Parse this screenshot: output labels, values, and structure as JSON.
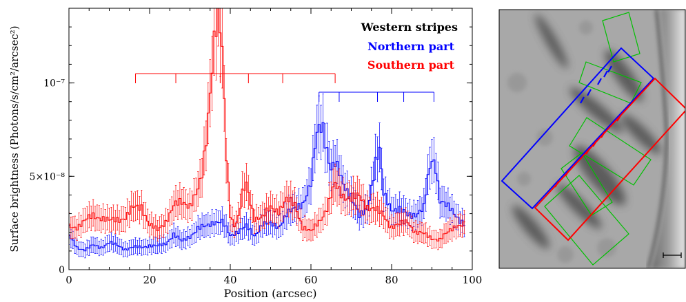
{
  "chart_data": [
    {
      "type": "line",
      "xlabel": "Position (arcsec)",
      "ylabel": "Surface brightness (Photons/s/cm²/arcsec²)",
      "xlim": [
        0,
        100
      ],
      "ylim": [
        0,
        1.4e-07
      ],
      "x_ticks": [
        0,
        20,
        40,
        60,
        80,
        100
      ],
      "x_tick_labels": [
        "0",
        "20",
        "40",
        "60",
        "80",
        "100"
      ],
      "y_ticks": [
        0,
        5e-08,
        1e-07
      ],
      "y_tick_labels": [
        "0",
        "5×10⁻⁸",
        "10⁻⁷"
      ],
      "legend": {
        "position": "top-right",
        "title": "Western stripes",
        "title_color": "#000000"
      },
      "grid": false,
      "series": [
        {
          "name": "Northern part",
          "color": "#0000ff",
          "points": [
            [
              0,
              1.8e-08
            ],
            [
              2,
              1.2e-08
            ],
            [
              4,
              1.05e-08
            ],
            [
              6,
              1.3e-08
            ],
            [
              8,
              1.2e-08
            ],
            [
              10,
              1.45e-08
            ],
            [
              12,
              1.3e-08
            ],
            [
              14,
              1.1e-08
            ],
            [
              16,
              1.2e-08
            ],
            [
              18,
              1.2e-08
            ],
            [
              20,
              1.3e-08
            ],
            [
              22,
              1.25e-08
            ],
            [
              24,
              1.4e-08
            ],
            [
              26,
              1.9e-08
            ],
            [
              28,
              1.5e-08
            ],
            [
              30,
              1.8e-08
            ],
            [
              32,
              2.2e-08
            ],
            [
              34,
              2.3e-08
            ],
            [
              36,
              2.6e-08
            ],
            [
              38,
              2.55e-08
            ],
            [
              40,
              1.8e-08
            ],
            [
              42,
              2.1e-08
            ],
            [
              44,
              2.3e-08
            ],
            [
              46,
              1.8e-08
            ],
            [
              48,
              2.5e-08
            ],
            [
              50,
              2.4e-08
            ],
            [
              52,
              2.3e-08
            ],
            [
              54,
              3e-08
            ],
            [
              56,
              3.2e-08
            ],
            [
              58,
              3.6e-08
            ],
            [
              60,
              4.6e-08
            ],
            [
              61,
              6.5e-08
            ],
            [
              62,
              7.6e-08
            ],
            [
              63,
              7.7e-08
            ],
            [
              64,
              6.5e-08
            ],
            [
              65,
              5.4e-08
            ],
            [
              66,
              5.6e-08
            ],
            [
              68,
              4.6e-08
            ],
            [
              70,
              4e-08
            ],
            [
              72,
              2.8e-08
            ],
            [
              74,
              3.3e-08
            ],
            [
              75,
              4.5e-08
            ],
            [
              76,
              5.8e-08
            ],
            [
              77,
              6.3e-08
            ],
            [
              78,
              4e-08
            ],
            [
              80,
              3.3e-08
            ],
            [
              82,
              3.2e-08
            ],
            [
              84,
              2.9e-08
            ],
            [
              86,
              3e-08
            ],
            [
              88,
              3.3e-08
            ],
            [
              89,
              4.8e-08
            ],
            [
              90,
              5.9e-08
            ],
            [
              91,
              5.6e-08
            ],
            [
              92,
              3.8e-08
            ],
            [
              94,
              3.3e-08
            ],
            [
              96,
              2.9e-08
            ],
            [
              98,
              2.5e-08
            ]
          ],
          "ticks_x": [
            62,
            67,
            76.5,
            83,
            90.5
          ]
        },
        {
          "name": "Southern part",
          "color": "#ff0000",
          "points": [
            [
              0,
              2.3e-08
            ],
            [
              2,
              2.3e-08
            ],
            [
              4,
              2.6e-08
            ],
            [
              6,
              2.9e-08
            ],
            [
              8,
              2.8e-08
            ],
            [
              10,
              2.6e-08
            ],
            [
              12,
              2.7e-08
            ],
            [
              14,
              2.8e-08
            ],
            [
              16,
              3.3e-08
            ],
            [
              18,
              3.4e-08
            ],
            [
              20,
              2.4e-08
            ],
            [
              22,
              2.1e-08
            ],
            [
              24,
              2.6e-08
            ],
            [
              26,
              3.4e-08
            ],
            [
              28,
              3.6e-08
            ],
            [
              30,
              3.5e-08
            ],
            [
              32,
              4.2e-08
            ],
            [
              33,
              5e-08
            ],
            [
              34,
              7e-08
            ],
            [
              35,
              9.8e-08
            ],
            [
              36,
              1.25e-07
            ],
            [
              37,
              1.38e-07
            ],
            [
              38,
              1.15e-07
            ],
            [
              39,
              6e-08
            ],
            [
              40,
              3e-08
            ],
            [
              41,
              2.4e-08
            ],
            [
              42,
              2.8e-08
            ],
            [
              43,
              4e-08
            ],
            [
              44,
              4.5e-08
            ],
            [
              45,
              3.6e-08
            ],
            [
              46,
              2.8e-08
            ],
            [
              48,
              2.8e-08
            ],
            [
              50,
              3.3e-08
            ],
            [
              52,
              3.2e-08
            ],
            [
              54,
              3.7e-08
            ],
            [
              56,
              3.5e-08
            ],
            [
              58,
              2.3e-08
            ],
            [
              60,
              2e-08
            ],
            [
              62,
              2.6e-08
            ],
            [
              64,
              3.3e-08
            ],
            [
              66,
              4.5e-08
            ],
            [
              68,
              4e-08
            ],
            [
              70,
              3.8e-08
            ],
            [
              72,
              3.9e-08
            ],
            [
              74,
              3.4e-08
            ],
            [
              76,
              3.2e-08
            ],
            [
              78,
              2.9e-08
            ],
            [
              80,
              2.3e-08
            ],
            [
              82,
              2.4e-08
            ],
            [
              84,
              2.6e-08
            ],
            [
              86,
              2e-08
            ],
            [
              88,
              1.9e-08
            ],
            [
              90,
              1.7e-08
            ],
            [
              92,
              1.6e-08
            ],
            [
              94,
              2e-08
            ],
            [
              96,
              2.4e-08
            ],
            [
              98,
              2.4e-08
            ]
          ],
          "ticks_x": [
            16.5,
            26.5,
            37.5,
            44.5,
            53,
            66
          ]
        }
      ]
    }
  ],
  "image_panel": {
    "type": "grayscale image with region overlays",
    "overlay_colors": {
      "north_box": "#0000ff",
      "south_box": "#ff0000",
      "regions": "#00c000"
    }
  }
}
